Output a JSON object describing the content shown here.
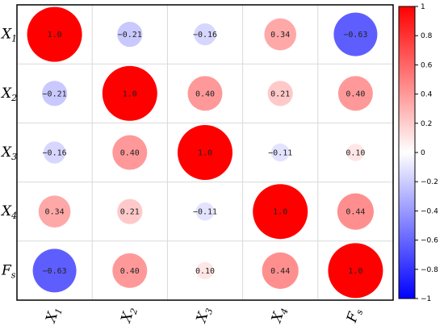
{
  "chart_data": {
    "type": "heatmap",
    "variables": [
      {
        "main": "X",
        "sub": "1"
      },
      {
        "main": "X",
        "sub": "2"
      },
      {
        "main": "X",
        "sub": "3"
      },
      {
        "main": "X",
        "sub": "4"
      },
      {
        "main": "F",
        "sub": "s"
      }
    ],
    "matrix": [
      [
        1.0,
        -0.21,
        -0.16,
        0.34,
        -0.63
      ],
      [
        -0.21,
        1.0,
        0.4,
        0.21,
        0.4
      ],
      [
        -0.16,
        0.4,
        1.0,
        -0.11,
        0.1
      ],
      [
        0.34,
        0.21,
        -0.11,
        1.0,
        0.44
      ],
      [
        -0.63,
        0.4,
        0.1,
        0.44,
        1.0
      ]
    ],
    "cell_labels": [
      [
        "1.0",
        "−0.21",
        "−0.16",
        "0.34",
        "−0.63"
      ],
      [
        "−0.21",
        "1.0",
        "0.40",
        "0.21",
        "0.40"
      ],
      [
        "−0.16",
        "0.40",
        "1.0",
        "−0.11",
        "0.10"
      ],
      [
        "0.34",
        "0.21",
        "−0.11",
        "1.0",
        "0.44"
      ],
      [
        "−0.63",
        "0.40",
        "0.10",
        "0.44",
        "1.0"
      ]
    ],
    "marker": "circle-size-and-color-by-value",
    "colorbar": {
      "range": [
        -1,
        1
      ],
      "ticks": [
        1,
        0.8,
        0.6,
        0.4,
        0.2,
        0,
        -0.2,
        -0.4,
        -0.6,
        -0.8,
        -1
      ],
      "tick_labels": [
        "1",
        "0.8",
        "0.6",
        "0.4",
        "0.2",
        "0",
        "−0.2",
        "−0.4",
        "−0.6",
        "−0.8",
        "−1"
      ],
      "colors": {
        "negative": "#0000ff",
        "zero": "#ffffff",
        "positive": "#ff0000"
      }
    },
    "grid": true,
    "colors": {
      "frame": "#000000",
      "grid": "#d9d9d9"
    }
  }
}
